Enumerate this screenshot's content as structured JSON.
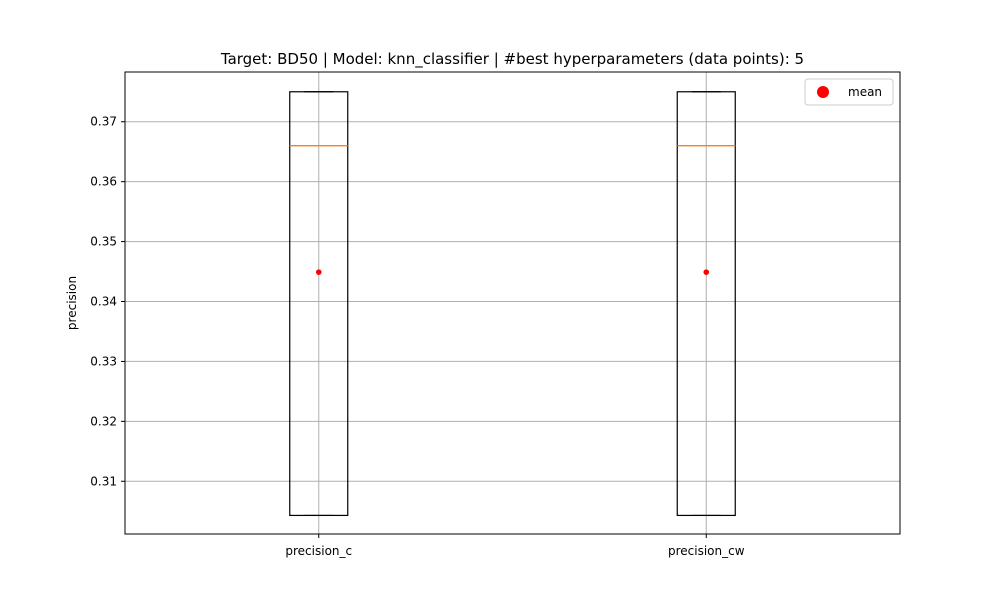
{
  "chart_data": {
    "type": "box",
    "title": "Target: BD50 | Model: knn_classifier | #best hyperparameters (data points): 5",
    "xlabel": "",
    "ylabel": "precision",
    "ylim": [
      0.3012,
      0.3783
    ],
    "yticks": [
      0.31,
      0.32,
      0.33,
      0.34,
      0.35,
      0.36,
      0.37
    ],
    "grid": true,
    "legend": {
      "position": "top-right",
      "entries": [
        "mean"
      ]
    },
    "categories": [
      "precision_c",
      "precision_cw"
    ],
    "series": [
      {
        "min": 0.3043,
        "q1": 0.3043,
        "median": 0.366,
        "q3": 0.375,
        "max": 0.375,
        "mean": 0.3449
      },
      {
        "min": 0.3043,
        "q1": 0.3043,
        "median": 0.366,
        "q3": 0.375,
        "max": 0.375,
        "mean": 0.3449
      }
    ],
    "colors": {
      "box": "#000000",
      "median": "#ff7f0e",
      "mean": "#ff0000",
      "grid": "#b0b0b0"
    }
  }
}
